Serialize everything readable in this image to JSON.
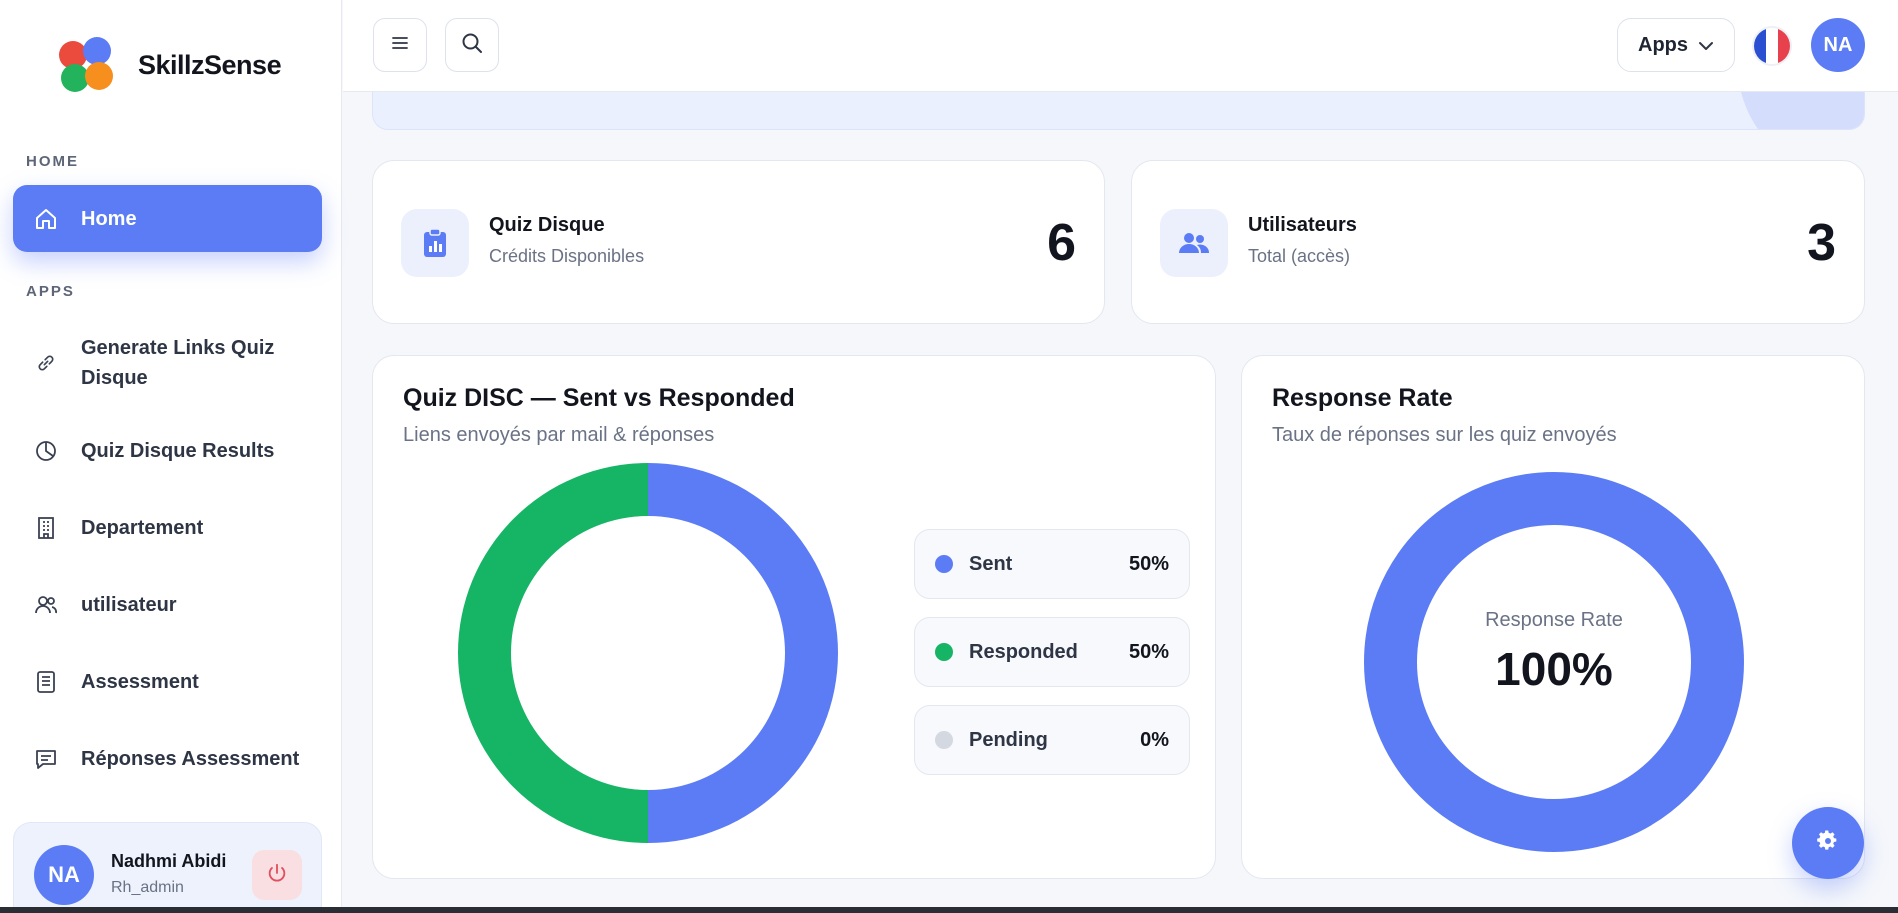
{
  "brand": {
    "name": "SkillzSense"
  },
  "sidebar": {
    "sections": [
      {
        "title": "HOME"
      },
      {
        "title": "APPS"
      }
    ],
    "items": [
      {
        "label": "Home",
        "icon": "home-icon",
        "active": true
      },
      {
        "label": "Generate Links Quiz Disque",
        "icon": "link-icon"
      },
      {
        "label": "Quiz Disque Results",
        "icon": "pie-chart-icon"
      },
      {
        "label": "Departement",
        "icon": "building-icon"
      },
      {
        "label": "utilisateur",
        "icon": "users-icon"
      },
      {
        "label": "Assessment",
        "icon": "list-icon"
      },
      {
        "label": "Réponses Assessment",
        "icon": "message-icon"
      }
    ]
  },
  "user": {
    "initials": "NA",
    "name": "Nadhmi Abidi",
    "role": "Rh_admin"
  },
  "header": {
    "apps_label": "Apps",
    "avatar_initials": "NA"
  },
  "stats": [
    {
      "title": "Quiz Disque",
      "subtitle": "Crédits Disponibles",
      "value": "6",
      "icon": "clipboard-chart-icon"
    },
    {
      "title": "Utilisateurs",
      "subtitle": "Total (accès)",
      "value": "3",
      "icon": "users-icon"
    }
  ],
  "chart_disc": {
    "title": "Quiz DISC — Sent vs Responded",
    "subtitle": "Liens envoyés par mail & réponses",
    "legend": [
      {
        "label": "Sent",
        "value": "50%"
      },
      {
        "label": "Responded",
        "value": "50%"
      },
      {
        "label": "Pending",
        "value": "0%"
      }
    ]
  },
  "chart_rate": {
    "title": "Response Rate",
    "subtitle": "Taux de réponses sur les quiz envoyés",
    "center_label": "Response Rate",
    "center_value": "100%"
  },
  "colors": {
    "primary": "#5b7cf5",
    "green": "#15b565",
    "grey": "#d4d8e0"
  },
  "chart_data": [
    {
      "type": "pie",
      "variant": "donut",
      "categories": [
        "Sent",
        "Responded",
        "Pending"
      ],
      "values": [
        50,
        50,
        0
      ],
      "colors": [
        "#5b7cf5",
        "#15b565",
        "#d4d8e0"
      ]
    },
    {
      "type": "pie",
      "variant": "donut",
      "categories": [
        "Response Rate"
      ],
      "values": [
        100
      ],
      "colors": [
        "#5b7cf5"
      ]
    }
  ]
}
